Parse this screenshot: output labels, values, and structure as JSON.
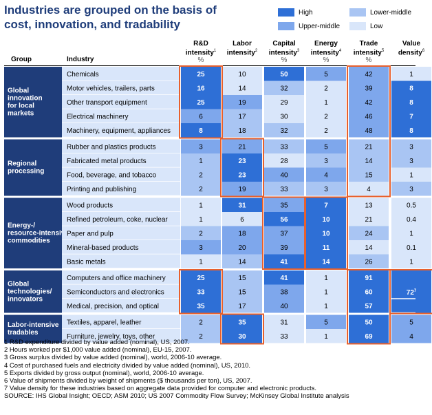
{
  "title": "Industries are grouped on the basis of cost, innovation, and tradability",
  "legend": [
    {
      "label": "High",
      "level": "high"
    },
    {
      "label": "Upper-middle",
      "level": "upper"
    },
    {
      "label": "Lower-middle",
      "level": "lower"
    },
    {
      "label": "Low",
      "level": "low"
    }
  ],
  "colors": {
    "high": "#2e6fd6",
    "upper": "#7ea7ec",
    "lower": "#a9c5f3",
    "low": "#d9e6fa",
    "group_bg": "#1f3d7a",
    "highlight_border": "#e8602c",
    "row_sep": "#ffffff"
  },
  "headers": {
    "group": "Group",
    "industry": "Industry",
    "columns": [
      {
        "lines": [
          "R&D",
          "intensity"
        ],
        "sup": "1",
        "unit": "%"
      },
      {
        "lines": [
          "Labor",
          "intensity"
        ],
        "sup": "2",
        "unit": ""
      },
      {
        "lines": [
          "Capital",
          "intensity"
        ],
        "sup": "3",
        "unit": "%"
      },
      {
        "lines": [
          "Energy",
          "intensity"
        ],
        "sup": "4",
        "unit": "%"
      },
      {
        "lines": [
          "Trade",
          "intensity"
        ],
        "sup": "5",
        "unit": "%"
      },
      {
        "lines": [
          "Value",
          "density"
        ],
        "sup": "6",
        "unit": ""
      }
    ]
  },
  "chart_data": {
    "type": "table",
    "title": "Industries are grouped on the basis of cost, innovation, and tradability",
    "columns": [
      "R&D intensity %",
      "Labor intensity",
      "Capital intensity %",
      "Energy intensity %",
      "Trade intensity %",
      "Value density"
    ],
    "groups": [
      {
        "name": "Global innovation for local markets",
        "rows": [
          {
            "industry": "Chemicals",
            "values": [
              "25",
              "10",
              "50",
              "5",
              "42",
              "1"
            ],
            "levels": [
              "high",
              "low",
              "high",
              "upper",
              "upper",
              "low"
            ]
          },
          {
            "industry": "Motor vehicles, trailers, parts",
            "values": [
              "16",
              "14",
              "32",
              "2",
              "39",
              "8"
            ],
            "levels": [
              "high",
              "low",
              "lower",
              "low",
              "upper",
              "high"
            ]
          },
          {
            "industry": "Other transport equipment",
            "values": [
              "25",
              "19",
              "29",
              "1",
              "42",
              "8"
            ],
            "levels": [
              "high",
              "upper",
              "low",
              "low",
              "upper",
              "high"
            ]
          },
          {
            "industry": "Electrical machinery",
            "values": [
              "6",
              "17",
              "30",
              "2",
              "46",
              "7"
            ],
            "levels": [
              "upper",
              "lower",
              "low",
              "low",
              "upper",
              "high"
            ]
          },
          {
            "industry": "Machinery, equipment, appliances",
            "values": [
              "8",
              "18",
              "32",
              "2",
              "48",
              "8"
            ],
            "levels": [
              "high",
              "lower",
              "lower",
              "low",
              "upper",
              "high"
            ]
          }
        ]
      },
      {
        "name": "Regional processing",
        "rows": [
          {
            "industry": "Rubber and plastics products",
            "values": [
              "3",
              "21",
              "33",
              "5",
              "21",
              "3"
            ],
            "levels": [
              "upper",
              "upper",
              "lower",
              "upper",
              "lower",
              "lower"
            ]
          },
          {
            "industry": "Fabricated metal products",
            "values": [
              "1",
              "23",
              "28",
              "3",
              "14",
              "3"
            ],
            "levels": [
              "lower",
              "high",
              "low",
              "lower",
              "lower",
              "lower"
            ]
          },
          {
            "industry": "Food, beverage, and tobacco",
            "values": [
              "2",
              "23",
              "40",
              "4",
              "15",
              "1"
            ],
            "levels": [
              "lower",
              "high",
              "upper",
              "upper",
              "lower",
              "low"
            ]
          },
          {
            "industry": "Printing and publishing",
            "values": [
              "2",
              "19",
              "33",
              "3",
              "4",
              "3"
            ],
            "levels": [
              "lower",
              "upper",
              "lower",
              "lower",
              "low",
              "lower"
            ]
          }
        ]
      },
      {
        "name": "Energy-/ resource-intensive commodities",
        "rows": [
          {
            "industry": "Wood products",
            "values": [
              "1",
              "31",
              "35",
              "7",
              "13",
              "0.5"
            ],
            "levels": [
              "low",
              "high",
              "upper",
              "high",
              "low",
              "low"
            ]
          },
          {
            "industry": "Refined petroleum, coke, nuclear",
            "values": [
              "1",
              "6",
              "56",
              "10",
              "21",
              "0.4"
            ],
            "levels": [
              "low",
              "low",
              "high",
              "high",
              "low",
              "low"
            ]
          },
          {
            "industry": "Paper and pulp",
            "values": [
              "2",
              "18",
              "37",
              "10",
              "24",
              "1"
            ],
            "levels": [
              "lower",
              "upper",
              "upper",
              "high",
              "lower",
              "low"
            ]
          },
          {
            "industry": "Mineral-based products",
            "values": [
              "3",
              "20",
              "39",
              "11",
              "14",
              "0.1"
            ],
            "levels": [
              "upper",
              "upper",
              "upper",
              "high",
              "low",
              "low"
            ]
          },
          {
            "industry": "Basic metals",
            "values": [
              "1",
              "14",
              "41",
              "14",
              "26",
              "1"
            ],
            "levels": [
              "low",
              "lower",
              "high",
              "high",
              "lower",
              "low"
            ]
          }
        ]
      },
      {
        "name": "Global technologies/ innovators",
        "rows": [
          {
            "industry": "Computers and office machinery",
            "values": [
              "25",
              "15",
              "41",
              "1",
              "91",
              ""
            ],
            "levels": [
              "high",
              "lower",
              "high",
              "low",
              "high",
              "high"
            ]
          },
          {
            "industry": "Semiconductors and electronics",
            "values": [
              "33",
              "15",
              "38",
              "1",
              "60",
              "72"
            ],
            "sup": [
              "",
              "",
              "",
              "",
              "",
              "7"
            ],
            "levels": [
              "high",
              "lower",
              "upper",
              "low",
              "high",
              "high"
            ]
          },
          {
            "industry": "Medical, precision, and optical",
            "values": [
              "35",
              "17",
              "40",
              "1",
              "57",
              ""
            ],
            "levels": [
              "high",
              "lower",
              "upper",
              "low",
              "high",
              "high"
            ]
          }
        ]
      },
      {
        "name": "Labor-intensive tradables",
        "rows": [
          {
            "industry": "Textiles, apparel, leather",
            "values": [
              "2",
              "35",
              "31",
              "5",
              "50",
              "5"
            ],
            "levels": [
              "lower",
              "high",
              "low",
              "upper",
              "high",
              "upper"
            ]
          },
          {
            "industry": "Furniture, jewelry, toys, other",
            "values": [
              "2",
              "30",
              "33",
              "1",
              "69",
              "4"
            ],
            "levels": [
              "lower",
              "high",
              "low",
              "low",
              "high",
              "upper"
            ]
          }
        ]
      }
    ],
    "highlights": [
      {
        "col": 0,
        "from": 0,
        "to": 4
      },
      {
        "col": 4,
        "from": 0,
        "to": 8
      },
      {
        "col": 1,
        "from": 5,
        "to": 8
      },
      {
        "col": 2,
        "from": 9,
        "to": 13
      },
      {
        "col": 3,
        "from": 9,
        "to": 13
      },
      {
        "col": 0,
        "from": 14,
        "to": 16
      },
      {
        "col": 4,
        "from": 14,
        "to": 18
      },
      {
        "col": 5,
        "from": 14,
        "to": 16
      },
      {
        "col": 1,
        "from": 17,
        "to": 18
      }
    ]
  },
  "footnotes": [
    "1  R&D expenditure divided by value added (nominal), US, 2007.",
    "2  Hours worked per $1,000 value added (nominal), EU-15, 2007.",
    "3  Gross surplus divided by value added (nominal), world, 2006-10 average.",
    "4  Cost of purchased fuels and electricity divided by value added (nominal), US, 2010.",
    "5  Exports divided by gross output (nominal), world, 2006-10 average.",
    "6  Value of shipments divided by weight of shipments ($ thousands per ton), US, 2007.",
    "7  Value density for these industries based on aggregate data provided for computer and electronic products."
  ],
  "source": "SOURCE: IHS Global Insight; OECD; ASM 2010; US 2007 Commodity Flow Survey; McKinsey Global Institute analysis"
}
